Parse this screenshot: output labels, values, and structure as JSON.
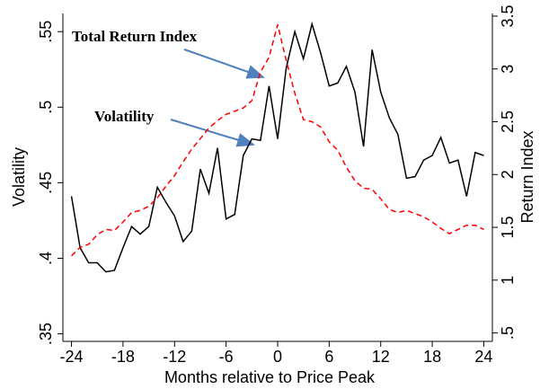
{
  "chart_data": {
    "type": "line",
    "xlabel": "Months relative to Price Peak",
    "ylabel": "Volatility",
    "y2label": "Return Index",
    "x": [
      -24,
      -23,
      -22,
      -21,
      -20,
      -19,
      -18,
      -17,
      -16,
      -15,
      -14,
      -13,
      -12,
      -11,
      -10,
      -9,
      -8,
      -7,
      -6,
      -5,
      -4,
      -3,
      -2,
      -1,
      0,
      1,
      2,
      3,
      4,
      5,
      6,
      7,
      8,
      9,
      10,
      11,
      12,
      13,
      14,
      15,
      16,
      17,
      18,
      19,
      20,
      21,
      22,
      23,
      24
    ],
    "series": [
      {
        "name": "Volatility",
        "color": "#000000",
        "dash": false,
        "values": [
          0.441,
          0.407,
          0.397,
          0.397,
          0.391,
          0.392,
          0.407,
          0.421,
          0.416,
          0.421,
          0.447,
          0.437,
          0.428,
          0.411,
          0.418,
          0.459,
          0.443,
          0.473,
          0.426,
          0.429,
          0.468,
          0.479,
          0.478,
          0.514,
          0.479,
          0.526,
          0.55,
          0.532,
          0.555,
          0.536,
          0.514,
          0.516,
          0.527,
          0.51,
          0.474,
          0.538,
          0.51,
          0.493,
          0.482,
          0.453,
          0.454,
          0.465,
          0.468,
          0.48,
          0.463,
          0.465,
          0.441,
          0.47,
          0.468
        ]
      },
      {
        "name": "Total Return Index",
        "color": "#ff0000",
        "dash": true,
        "axis": "y2",
        "values": [
          1.23,
          1.31,
          1.34,
          1.43,
          1.48,
          1.47,
          1.55,
          1.64,
          1.66,
          1.7,
          1.78,
          1.89,
          1.99,
          2.12,
          2.24,
          2.34,
          2.44,
          2.51,
          2.57,
          2.6,
          2.63,
          2.7,
          2.97,
          3.11,
          3.42,
          3.08,
          2.77,
          2.52,
          2.5,
          2.45,
          2.31,
          2.23,
          2.07,
          1.94,
          1.87,
          1.86,
          1.77,
          1.67,
          1.64,
          1.66,
          1.63,
          1.6,
          1.55,
          1.49,
          1.44,
          1.48,
          1.52,
          1.52,
          1.48
        ]
      }
    ],
    "xlim": [
      -25,
      25
    ],
    "xticks": [
      -24,
      -18,
      -12,
      -6,
      0,
      6,
      12,
      18,
      24
    ],
    "ylim": [
      0.345,
      0.562
    ],
    "yticks": [
      {
        "value": 0.35,
        "label": ".35"
      },
      {
        "value": 0.4,
        "label": ".4"
      },
      {
        "value": 0.45,
        "label": ".45"
      },
      {
        "value": 0.5,
        "label": ".5"
      },
      {
        "value": 0.55,
        "label": ".55"
      }
    ],
    "y2lim": [
      0.42,
      3.525
    ],
    "y2ticks": [
      {
        "value": 0.5,
        "label": ".5"
      },
      1,
      1.5,
      2,
      2.5,
      3,
      3.5
    ],
    "grid": false
  }
}
